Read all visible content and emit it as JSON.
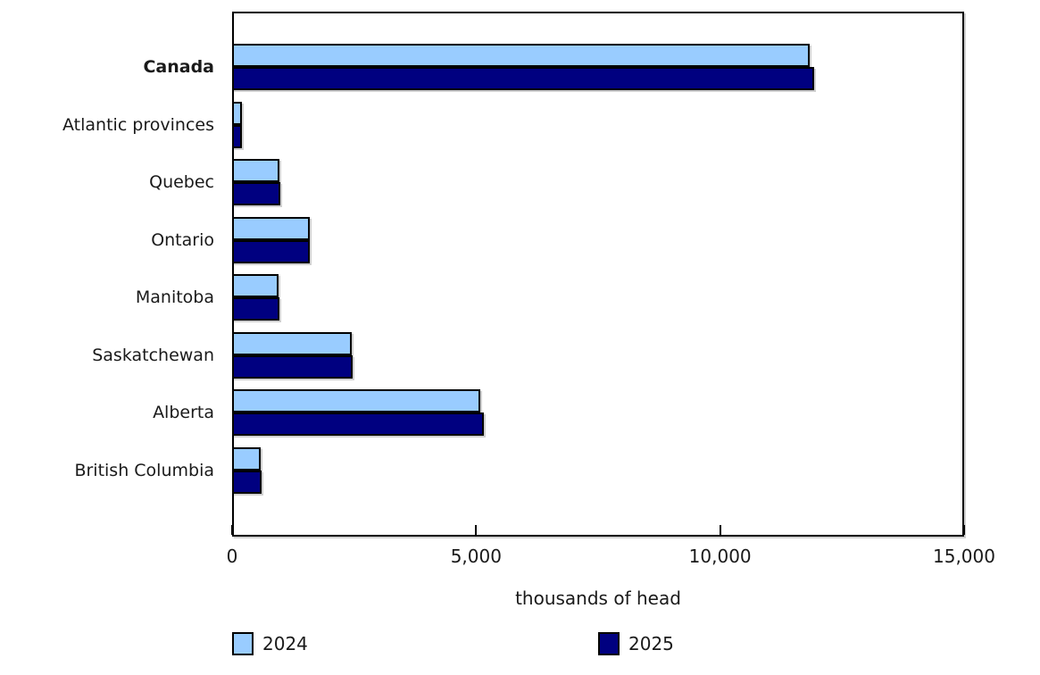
{
  "chart_data": {
    "type": "bar",
    "orientation": "horizontal",
    "title": "",
    "xlabel": "thousands of head",
    "ylabel": "",
    "xlim": [
      0,
      15000
    ],
    "grid": false,
    "legend_position": "bottom",
    "categories": [
      "Canada",
      "Atlantic provinces",
      "Quebec",
      "Ontario",
      "Manitoba",
      "Saskatchewan",
      "Alberta",
      "British Columbia"
    ],
    "bold_categories": [
      "Canada"
    ],
    "series": [
      {
        "name": "2024",
        "color": "#99CCFF",
        "values": [
          11840,
          195,
          970,
          1590,
          950,
          2450,
          5085,
          585
        ]
      },
      {
        "name": "2025",
        "color": "#000080",
        "values": [
          11930,
          205,
          985,
          1600,
          965,
          2470,
          5160,
          600
        ]
      }
    ],
    "x_ticks": [
      {
        "value": 0,
        "label": "0"
      },
      {
        "value": 5000,
        "label": "5,000"
      },
      {
        "value": 10000,
        "label": "10,000"
      },
      {
        "value": 15000,
        "label": "15,000"
      }
    ],
    "colors": {
      "bar_border": "#000000",
      "plot_border": "#000000",
      "text": "#1a1a1a",
      "background": "#ffffff"
    }
  }
}
